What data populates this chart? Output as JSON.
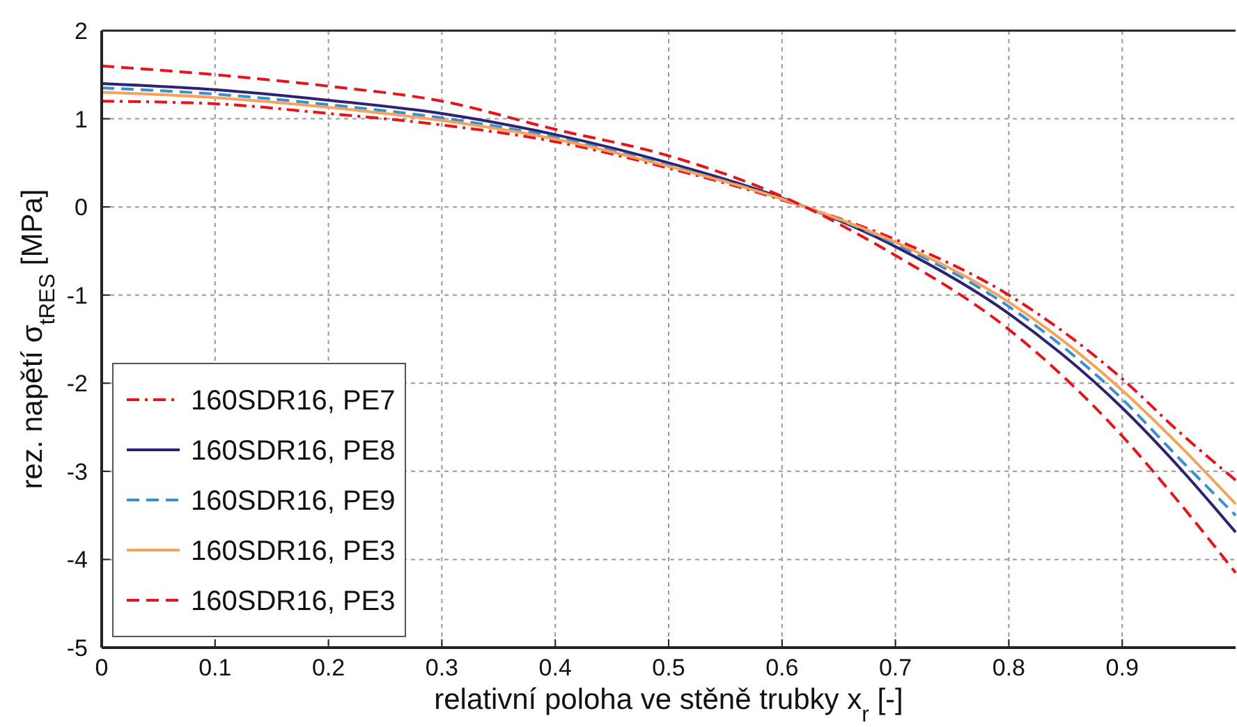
{
  "chart_data": {
    "type": "line",
    "xlabel": "relativní poloha ve stěně trubky x$_{r}$ [-]",
    "ylabel": "rez. napětí σ$_{tRES}$ [MPa]",
    "x": [
      0,
      0.1,
      0.2,
      0.3,
      0.4,
      0.5,
      0.6,
      0.7,
      0.8,
      0.9,
      0.95,
      1.0
    ],
    "series": [
      {
        "name": "160SDR16, PE7",
        "color": "#e8141c",
        "line_style": "dashdot",
        "values": [
          1.2,
          1.17,
          1.06,
          0.93,
          0.74,
          0.44,
          0.08,
          -0.37,
          -1.0,
          -1.95,
          -2.55,
          -3.1
        ]
      },
      {
        "name": "160SDR16, PE8",
        "color": "#2e2272",
        "line_style": "solid",
        "values": [
          1.4,
          1.33,
          1.21,
          1.06,
          0.82,
          0.5,
          0.1,
          -0.45,
          -1.21,
          -2.28,
          -2.95,
          -3.69
        ]
      },
      {
        "name": "160SDR16, PE9",
        "color": "#3a8fd0",
        "line_style": "dashed",
        "values": [
          1.35,
          1.28,
          1.16,
          1.01,
          0.79,
          0.47,
          0.09,
          -0.42,
          -1.13,
          -2.18,
          -2.85,
          -3.5
        ]
      },
      {
        "name": "160SDR16, PE3",
        "color": "#f5a35a",
        "line_style": "solid",
        "values": [
          1.3,
          1.24,
          1.13,
          0.98,
          0.77,
          0.46,
          0.09,
          -0.4,
          -1.08,
          -2.08,
          -2.7,
          -3.37
        ]
      },
      {
        "name": "160SDR16, PE3",
        "color": "#e8141c",
        "line_style": "dashed",
        "values": [
          1.6,
          1.5,
          1.37,
          1.2,
          0.88,
          0.58,
          0.12,
          -0.55,
          -1.39,
          -2.6,
          -3.35,
          -4.15
        ]
      }
    ],
    "xlim": [
      0,
      1
    ],
    "xticks": [
      0,
      0.1,
      0.2,
      0.3,
      0.4,
      0.5,
      0.6,
      0.7,
      0.8,
      0.9
    ],
    "ylim": [
      -5,
      2
    ],
    "yticks": [
      -5,
      -4,
      -3,
      -2,
      -1,
      0,
      1,
      2
    ],
    "grid": true,
    "legend": "bottom left",
    "marker": "none"
  }
}
